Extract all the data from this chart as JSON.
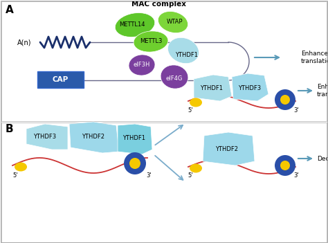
{
  "background_color": "#ffffff",
  "panel_A_label": "A",
  "panel_B_label": "B",
  "mac_complex_label": "MAC complex",
  "mettl14_label": "METTL14",
  "wtap_label": "WTAP",
  "mettl3_label": "METTL3",
  "ythdf1_label_A": "YTHDF1",
  "eif3h_label": "eIF3H",
  "eif4g_label": "eIF4G",
  "cap_label": "CAP",
  "an_label": "A(n)",
  "enhance_translation": "Enhance\ntranslation",
  "enhance_translation2": "Enhance\ntranslation",
  "decay_label": "Decay",
  "ythdf1_B": "YTHDF1",
  "ythdf2_B": "YTHDF2",
  "ythdf3_B": "YTHDF3",
  "five_prime": "5'",
  "three_prime": "3'",
  "green_mettl14": "#5ec72a",
  "green_wtap": "#7dd63a",
  "green_mettl3": "#6ecf2e",
  "light_blue_ythdf": "#a8dce8",
  "purple_color": "#7b3f9e",
  "dark_blue_circle": "#2a4fa8",
  "cap_blue": "#2a5aaa",
  "yellow": "#f5c800",
  "red_line": "#cc3333",
  "arrow_color": "#5a9ab8",
  "dark_navy_zigzag": "#1a2f6b",
  "mRNA_line_color": "#666688",
  "text_color": "#111111"
}
